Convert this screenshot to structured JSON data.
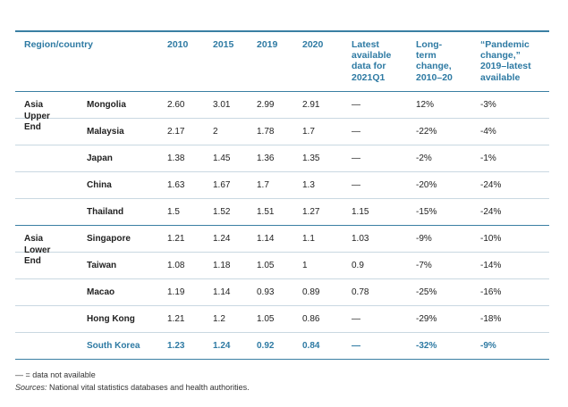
{
  "table": {
    "headers": {
      "region": "Region/country",
      "y2010": "2010",
      "y2015": "2015",
      "y2019": "2019",
      "y2020": "2020",
      "latest": "Latest\navailable\ndata for\n2021Q1",
      "long_term": "Long-\nterm\nchange,\n2010–20",
      "pandemic": "“Pandemic\nchange,”\n2019–latest\navailable"
    },
    "groups": [
      {
        "label": "Asia\nUpper\nEnd",
        "rows": [
          {
            "country": "Mongolia",
            "y2010": "2.60",
            "y2015": "3.01",
            "y2019": "2.99",
            "y2020": "2.91",
            "latest": "—",
            "long": "12%",
            "pand": "-3%"
          },
          {
            "country": "Malaysia",
            "y2010": "2.17",
            "y2015": "2",
            "y2019": "1.78",
            "y2020": "1.7",
            "latest": "—",
            "long": "-22%",
            "pand": "-4%"
          },
          {
            "country": "Japan",
            "y2010": "1.38",
            "y2015": "1.45",
            "y2019": "1.36",
            "y2020": "1.35",
            "latest": "—",
            "long": "-2%",
            "pand": "-1%"
          },
          {
            "country": "China",
            "y2010": "1.63",
            "y2015": "1.67",
            "y2019": "1.7",
            "y2020": "1.3",
            "latest": "—",
            "long": "-20%",
            "pand": "-24%"
          },
          {
            "country": "Thailand",
            "y2010": "1.5",
            "y2015": "1.52",
            "y2019": "1.51",
            "y2020": "1.27",
            "latest": "1.15",
            "long": "-15%",
            "pand": "-24%"
          }
        ]
      },
      {
        "label": "Asia\nLower\nEnd",
        "rows": [
          {
            "country": "Singapore",
            "y2010": "1.21",
            "y2015": "1.24",
            "y2019": "1.14",
            "y2020": "1.1",
            "latest": "1.03",
            "long": "-9%",
            "pand": "-10%"
          },
          {
            "country": "Taiwan",
            "y2010": "1.08",
            "y2015": "1.18",
            "y2019": "1.05",
            "y2020": "1",
            "latest": "0.9",
            "long": "-7%",
            "pand": "-14%"
          },
          {
            "country": "Macao",
            "y2010": "1.19",
            "y2015": "1.14",
            "y2019": "0.93",
            "y2020": "0.89",
            "latest": "0.78",
            "long": "-25%",
            "pand": "-16%"
          },
          {
            "country": "Hong Kong",
            "y2010": "1.21",
            "y2015": "1.2",
            "y2019": "1.05",
            "y2020": "0.86",
            "latest": "—",
            "long": "-29%",
            "pand": "-18%"
          },
          {
            "country": "South Korea",
            "y2010": "1.23",
            "y2015": "1.24",
            "y2019": "0.92",
            "y2020": "0.84",
            "latest": "—",
            "long": "-32%",
            "pand": "-9%",
            "highlight": true
          }
        ]
      }
    ]
  },
  "footer": {
    "note": "— = data not available",
    "sources_label": "Sources:",
    "sources_text": " National vital statistics databases and health authorities."
  },
  "colors": {
    "accent": "#2e7aa3",
    "rule": "#3a7fa3"
  }
}
